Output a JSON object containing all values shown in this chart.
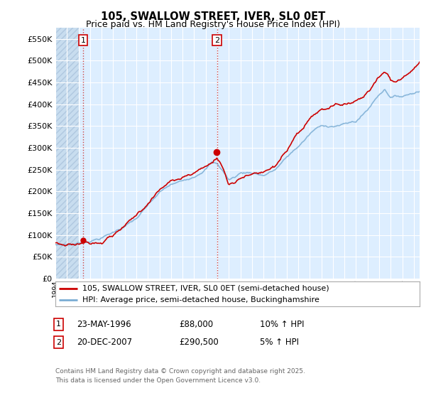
{
  "title": "105, SWALLOW STREET, IVER, SL0 0ET",
  "subtitle": "Price paid vs. HM Land Registry's House Price Index (HPI)",
  "legend_label_red": "105, SWALLOW STREET, IVER, SL0 0ET (semi-detached house)",
  "legend_label_blue": "HPI: Average price, semi-detached house, Buckinghamshire",
  "annotation1_num": "1",
  "annotation1_date": "23-MAY-1996",
  "annotation1_price": "£88,000",
  "annotation1_hpi": "10% ↑ HPI",
  "annotation2_num": "2",
  "annotation2_date": "20-DEC-2007",
  "annotation2_price": "£290,500",
  "annotation2_hpi": "5% ↑ HPI",
  "footnote": "Contains HM Land Registry data © Crown copyright and database right 2025.\nThis data is licensed under the Open Government Licence v3.0.",
  "ylim_min": 0,
  "ylim_max": 575000,
  "color_red": "#cc0000",
  "color_blue": "#7aadd4",
  "color_vline": "#cc4444",
  "bg_plot": "#ddeeff",
  "bg_hatch": "#c8ddef",
  "bg_figure": "#ffffff",
  "year_start": 1994,
  "year_end": 2025,
  "purchase1_year": 1996.4,
  "purchase1_price": 88000,
  "purchase2_year": 2007.97,
  "purchase2_price": 290500
}
